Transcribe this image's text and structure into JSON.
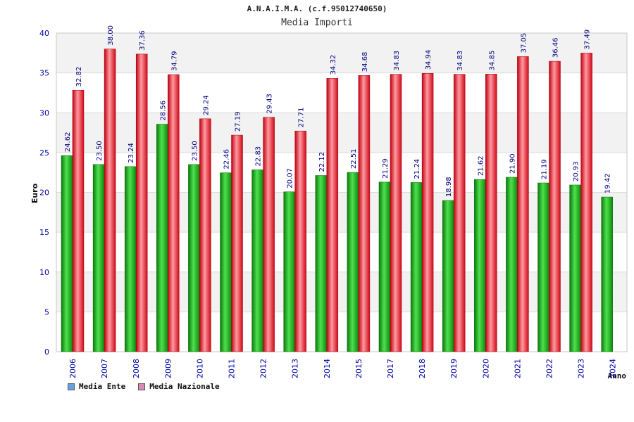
{
  "chart_data": {
    "type": "bar",
    "title": "A.N.A.I.M.A. (c.f.95012740650)",
    "subtitle": "Media Importi",
    "xlabel": "Anno",
    "ylabel": "Euro",
    "ylim": [
      0,
      40
    ],
    "yticks": [
      0,
      5,
      10,
      15,
      20,
      25,
      30,
      35,
      40
    ],
    "categories": [
      "2006",
      "2007",
      "2008",
      "2009",
      "2010",
      "2011",
      "2012",
      "2013",
      "2014",
      "2015",
      "2017",
      "2018",
      "2019",
      "2020",
      "2021",
      "2022",
      "2023",
      "2024"
    ],
    "series": [
      {
        "name": "Media Ente",
        "values": [
          24.62,
          23.5,
          23.24,
          28.56,
          23.5,
          22.46,
          22.83,
          20.07,
          22.12,
          22.51,
          21.29,
          21.24,
          18.98,
          21.62,
          21.9,
          21.19,
          20.93,
          19.42
        ],
        "labels": [
          "24.62",
          "23.50",
          "23.24",
          "28.56",
          "23.50",
          "22.46",
          "22.83",
          "20.07",
          "22.12",
          "22.51",
          "21.29",
          "21.24",
          "18.98",
          "21.62",
          "21.90",
          "21.19",
          "20.93",
          "19.42"
        ]
      },
      {
        "name": "Media Nazionale",
        "values": [
          32.82,
          38.0,
          37.36,
          34.79,
          29.24,
          27.19,
          29.43,
          27.71,
          34.32,
          34.68,
          34.83,
          34.94,
          34.83,
          34.85,
          37.05,
          36.46,
          37.49,
          null
        ],
        "labels": [
          "32.82",
          "38.00",
          "37.36",
          "34.79",
          "29.24",
          "27.19",
          "29.43",
          "27.71",
          "34.32",
          "34.68",
          "34.83",
          "34.94",
          "34.83",
          "34.85",
          "37.05",
          "36.46",
          "37.49",
          ""
        ]
      }
    ],
    "legend_position": "bottom-left",
    "colors": {
      "ente": "#00b000",
      "nazionale": "#e8101a",
      "legend_ente": "#6aa0e8",
      "legend_nazionale": "#d88ab8",
      "axis_text": "#0000aa"
    }
  }
}
